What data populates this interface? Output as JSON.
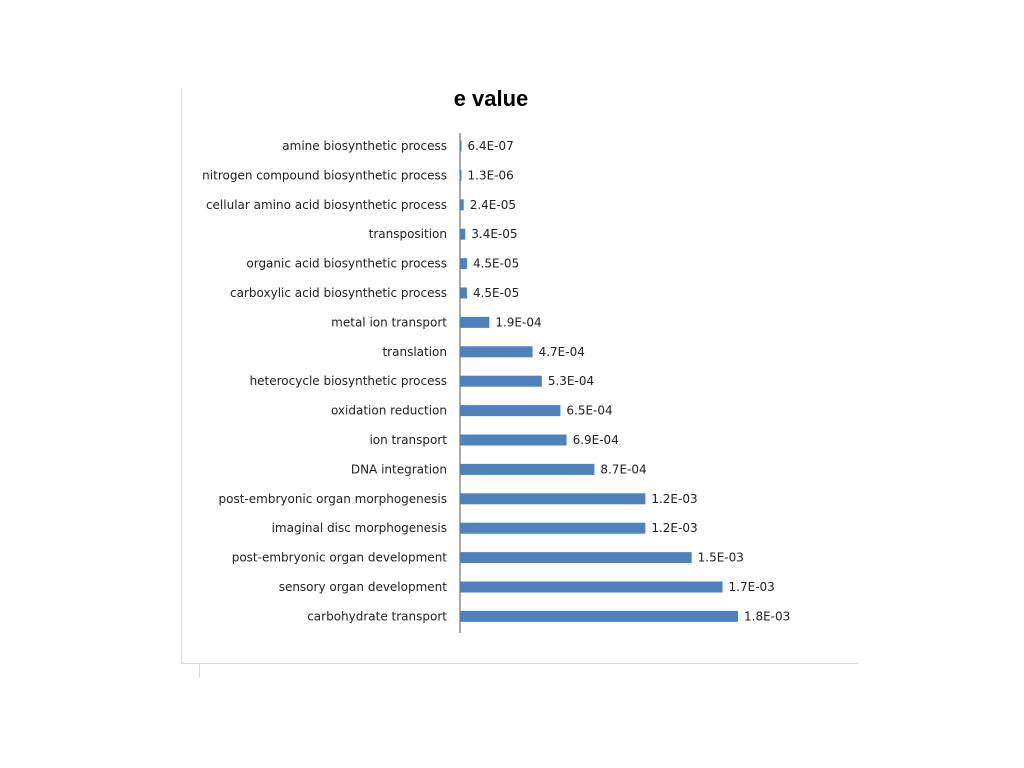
{
  "chart_data": {
    "type": "bar",
    "orientation": "horizontal",
    "title": "e value",
    "categories": [
      "amine biosynthetic process",
      "nitrogen compound biosynthetic process",
      "cellular amino acid biosynthetic process",
      "transposition",
      "organic acid biosynthetic process",
      "carboxylic acid biosynthetic process",
      "metal ion transport",
      "translation",
      "heterocycle biosynthetic process",
      "oxidation reduction",
      "ion transport",
      "DNA integration",
      "post-embryonic organ morphogenesis",
      "imaginal disc morphogenesis",
      "post-embryonic organ development",
      "sensory organ development",
      "carbohydrate transport"
    ],
    "values": [
      6.4e-07,
      1.3e-06,
      2.4e-05,
      3.4e-05,
      4.5e-05,
      4.5e-05,
      0.00019,
      0.00047,
      0.00053,
      0.00065,
      0.00069,
      0.00087,
      0.0012,
      0.0012,
      0.0015,
      0.0017,
      0.0018
    ],
    "data_labels": [
      "6.4E-07",
      "1.3E-06",
      "2.4E-05",
      "3.4E-05",
      "4.5E-05",
      "4.5E-05",
      "1.9E-04",
      "4.7E-04",
      "5.3E-04",
      "6.5E-04",
      "6.9E-04",
      "8.7E-04",
      "1.2E-03",
      "1.2E-03",
      "1.5E-03",
      "1.7E-03",
      "1.8E-03"
    ],
    "xlim": [
      0,
      0.0018
    ],
    "grid": false,
    "legend": "none",
    "bar_color": "#4f81bd"
  }
}
